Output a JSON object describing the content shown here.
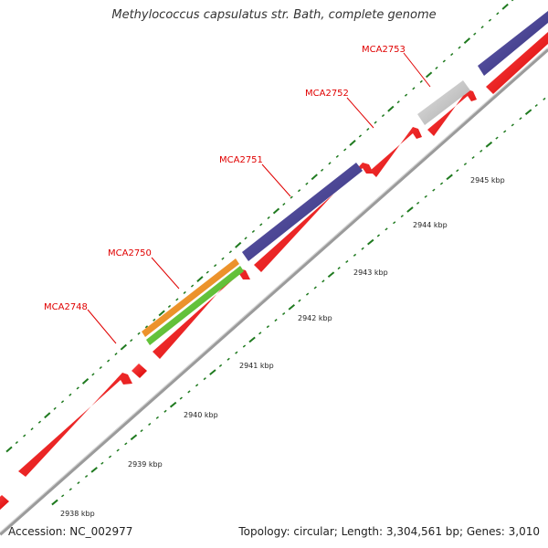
{
  "title": "Methylococcus capsulatus str. Bath, complete genome",
  "footer": {
    "accession": "Accession: NC_002977",
    "stats": "Topology: circular; Length: 3,304,561 bp; Genes: 3,010"
  },
  "colors": {
    "backbone": "#9b9b9b",
    "tick": "#1f7a1f",
    "gene_forward": "#ee1111",
    "rrna": "#3f3a8c",
    "orange": "#f08c1a",
    "green": "#5fc22b",
    "grey": "#c9c9c9",
    "label": "#e00000",
    "leader": "#e00000"
  },
  "gene_labels": [
    "MCA2748",
    "MCA2750",
    "MCA2751",
    "MCA2752",
    "MCA2753"
  ],
  "kbp_labels": [
    "2938 kbp",
    "2939 kbp",
    "2940 kbp",
    "2941 kbp",
    "2942 kbp",
    "2943 kbp",
    "2944 kbp",
    "2945 kbp"
  ]
}
